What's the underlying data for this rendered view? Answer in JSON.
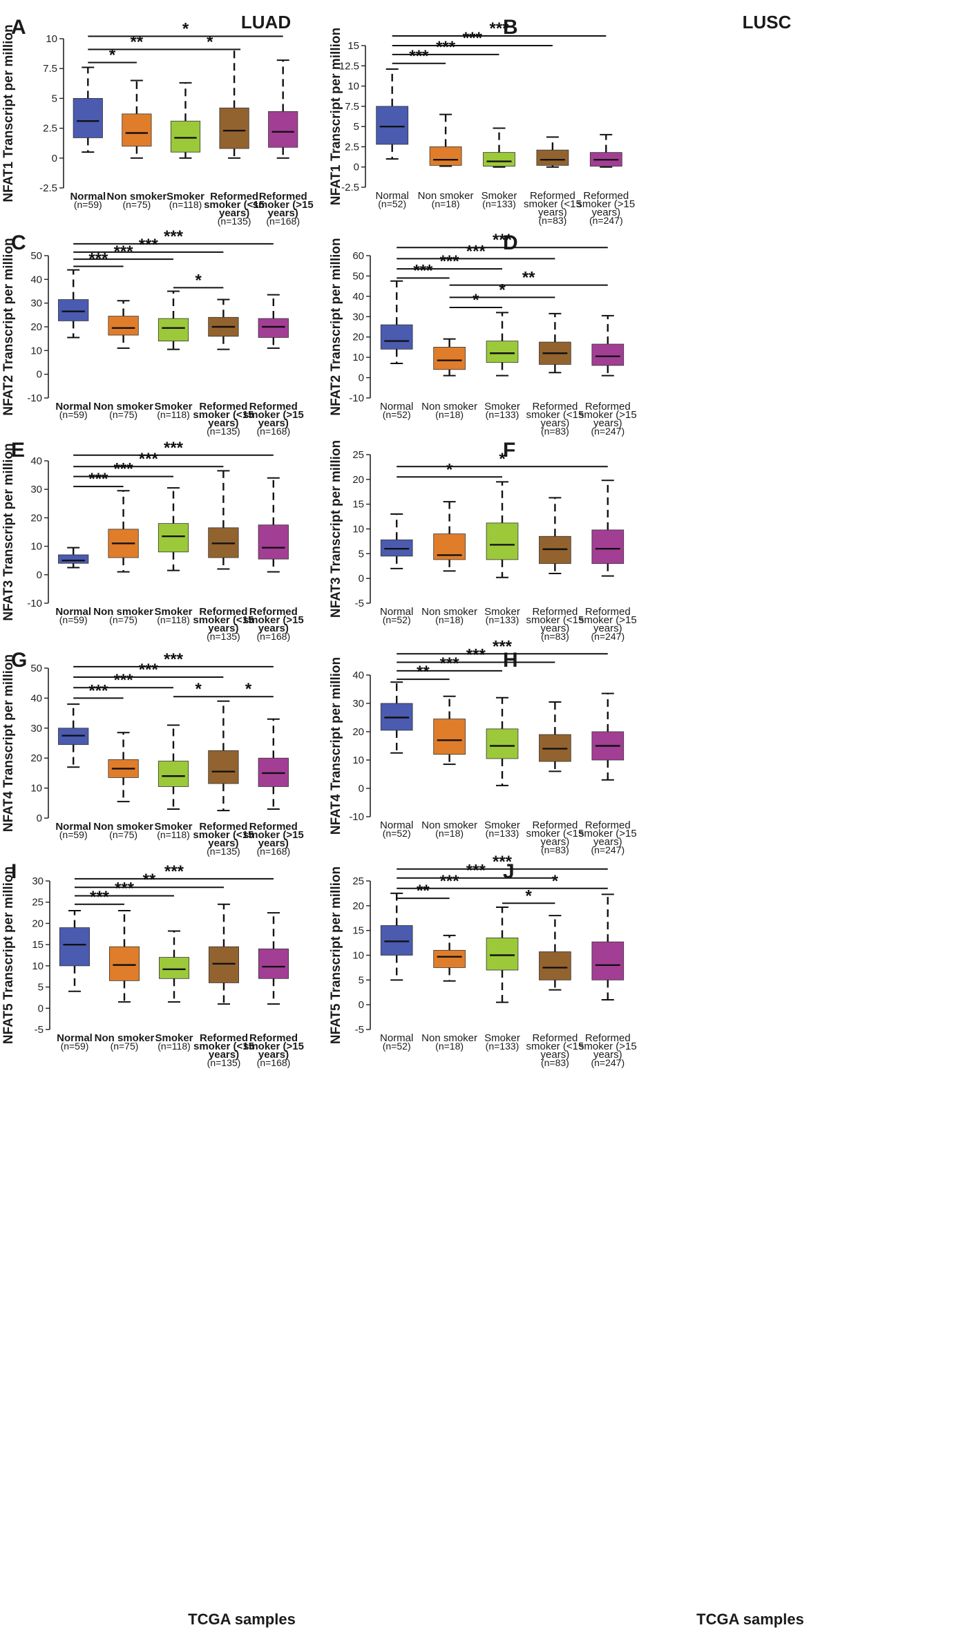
{
  "figure": {
    "column_titles": [
      "LUAD",
      "LUSC"
    ],
    "footer_label": "TCGA samples",
    "category_colors": [
      "#4a5bb0",
      "#e07d2a",
      "#9cc93a",
      "#93632f",
      "#a33e95"
    ]
  },
  "chart_data": [
    {
      "panel": "A",
      "type": "box",
      "ylabel": "NFAT1 Transcript per million",
      "ylim": [
        -2.5,
        10
      ],
      "yticks": [
        "-2.5",
        "0",
        "2.5",
        "5",
        "7.5",
        "10"
      ],
      "categories": [
        {
          "name": "Normal",
          "n": "(n=59)"
        },
        {
          "name": "Non smoker",
          "n": "(n=75)"
        },
        {
          "name": "Smoker",
          "n": "(n=118)"
        },
        {
          "name": "Reformed smoker (<15 years)",
          "n": "(n=135)"
        },
        {
          "name": "Reformed smoker (>15 years)",
          "n": "(n=168)"
        }
      ],
      "boxes": [
        {
          "min": 0.5,
          "q1": 1.7,
          "median": 3.1,
          "q3": 5.0,
          "max": 7.6
        },
        {
          "min": 0.0,
          "q1": 1.0,
          "median": 2.1,
          "q3": 3.7,
          "max": 6.5
        },
        {
          "min": 0.0,
          "q1": 0.5,
          "median": 1.7,
          "q3": 3.1,
          "max": 6.3
        },
        {
          "min": 0.0,
          "q1": 0.8,
          "median": 2.3,
          "q3": 4.2,
          "max": 9.1
        },
        {
          "min": 0.0,
          "q1": 0.9,
          "median": 2.2,
          "q3": 3.9,
          "max": 8.2
        }
      ],
      "significance": [
        {
          "from": 0,
          "to": 1,
          "y": 8.0,
          "label": "*"
        },
        {
          "from": 0,
          "to": 2,
          "y": 9.1,
          "label": "**"
        },
        {
          "from": 2,
          "to": 3,
          "y": 9.1,
          "label": "*"
        },
        {
          "from": 0,
          "to": 4,
          "y": 10.2,
          "label": "*"
        }
      ]
    },
    {
      "panel": "B",
      "type": "box",
      "ylabel": "NFAT1 Transcript per million",
      "ylim": [
        -2.5,
        15
      ],
      "yticks": [
        "-2.5",
        "0",
        "2.5",
        "5",
        "7.5",
        "10",
        "12.5",
        "15"
      ],
      "categories": [
        {
          "name": "Normal",
          "n": "(n=52)"
        },
        {
          "name": "Non smoker",
          "n": "(n=18)"
        },
        {
          "name": "Smoker",
          "n": "(n=133)"
        },
        {
          "name": "Reformed smoker (<15 years)",
          "n": "(n=83)"
        },
        {
          "name": "Reformed smoker (>15 years)",
          "n": "(n=247)"
        }
      ],
      "boxes": [
        {
          "min": 1.0,
          "q1": 2.8,
          "median": 5.0,
          "q3": 7.5,
          "max": 12.1
        },
        {
          "min": 0.1,
          "q1": 0.2,
          "median": 0.9,
          "q3": 2.5,
          "max": 6.5
        },
        {
          "min": 0.0,
          "q1": 0.1,
          "median": 0.7,
          "q3": 1.8,
          "max": 4.8
        },
        {
          "min": 0.0,
          "q1": 0.2,
          "median": 0.9,
          "q3": 2.1,
          "max": 3.7
        },
        {
          "min": 0.0,
          "q1": 0.1,
          "median": 0.9,
          "q3": 1.8,
          "max": 4.0
        }
      ],
      "significance": [
        {
          "from": 0,
          "to": 1,
          "y": 12.8,
          "label": "***"
        },
        {
          "from": 0,
          "to": 2,
          "y": 13.9,
          "label": "***"
        },
        {
          "from": 0,
          "to": 3,
          "y": 15.0,
          "label": "***"
        },
        {
          "from": 0,
          "to": 4,
          "y": 16.2,
          "label": "***"
        }
      ]
    },
    {
      "panel": "C",
      "type": "box",
      "ylabel": "NFAT2 Transcript per million",
      "ylim": [
        -10,
        50
      ],
      "yticks": [
        "-10",
        "0",
        "10",
        "20",
        "30",
        "40",
        "50"
      ],
      "categories": [
        {
          "name": "Normal",
          "n": "(n=59)"
        },
        {
          "name": "Non smoker",
          "n": "(n=75)"
        },
        {
          "name": "Smoker",
          "n": "(n=118)"
        },
        {
          "name": "Reformed smoker (<15 years)",
          "n": "(n=135)"
        },
        {
          "name": "Reformed smoker (>15 years)",
          "n": "(n=168)"
        }
      ],
      "boxes": [
        {
          "min": 15.5,
          "q1": 22.5,
          "median": 26.5,
          "q3": 31.5,
          "max": 44.0
        },
        {
          "min": 11.0,
          "q1": 16.5,
          "median": 19.5,
          "q3": 24.5,
          "max": 31.0
        },
        {
          "min": 10.5,
          "q1": 14.0,
          "median": 19.5,
          "q3": 23.5,
          "max": 35.0
        },
        {
          "min": 10.5,
          "q1": 16.0,
          "median": 20.0,
          "q3": 24.0,
          "max": 31.5
        },
        {
          "min": 11.0,
          "q1": 15.5,
          "median": 20.0,
          "q3": 23.5,
          "max": 33.5
        }
      ],
      "significance": [
        {
          "from": 0,
          "to": 1,
          "y": 45.5,
          "label": "***"
        },
        {
          "from": 0,
          "to": 2,
          "y": 48.5,
          "label": "***"
        },
        {
          "from": 2,
          "to": 3,
          "y": 36.5,
          "label": "*"
        },
        {
          "from": 0,
          "to": 3,
          "y": 51.5,
          "label": "***"
        },
        {
          "from": 0,
          "to": 4,
          "y": 55.0,
          "label": "***"
        }
      ]
    },
    {
      "panel": "D",
      "type": "box",
      "ylabel": "NFAT2 Transcript per million",
      "ylim": [
        -10,
        60
      ],
      "yticks": [
        "-10",
        "0",
        "10",
        "20",
        "30",
        "40",
        "50",
        "60"
      ],
      "categories": [
        {
          "name": "Normal",
          "n": "(n=52)"
        },
        {
          "name": "Non smoker",
          "n": "(n=18)"
        },
        {
          "name": "Smoker",
          "n": "(n=133)"
        },
        {
          "name": "Reformed smoker (<15 years)",
          "n": "(n=83)"
        },
        {
          "name": "Reformed smoker (>15 years)",
          "n": "(n=247)"
        }
      ],
      "boxes": [
        {
          "min": 7.0,
          "q1": 14.0,
          "median": 18.0,
          "q3": 26.0,
          "max": 47.5
        },
        {
          "min": 1.0,
          "q1": 4.0,
          "median": 8.5,
          "q3": 15.0,
          "max": 19.0
        },
        {
          "min": 1.0,
          "q1": 7.5,
          "median": 12.0,
          "q3": 18.0,
          "max": 32.0
        },
        {
          "min": 2.5,
          "q1": 6.5,
          "median": 12.0,
          "q3": 17.5,
          "max": 31.5
        },
        {
          "min": 1.0,
          "q1": 6.0,
          "median": 10.5,
          "q3": 16.5,
          "max": 30.5
        }
      ],
      "significance": [
        {
          "from": 1,
          "to": 2,
          "y": 34.5,
          "label": "*"
        },
        {
          "from": 1,
          "to": 3,
          "y": 39.5,
          "label": "*"
        },
        {
          "from": 1,
          "to": 4,
          "y": 45.5,
          "label": "**"
        },
        {
          "from": 0,
          "to": 1,
          "y": 49.0,
          "label": "***"
        },
        {
          "from": 0,
          "to": 2,
          "y": 53.5,
          "label": "***"
        },
        {
          "from": 0,
          "to": 3,
          "y": 58.5,
          "label": "***"
        },
        {
          "from": 0,
          "to": 4,
          "y": 64.0,
          "label": "***"
        }
      ]
    },
    {
      "panel": "E",
      "type": "box",
      "ylabel": "NFAT3 Transcript per million",
      "ylim": [
        -10,
        40
      ],
      "yticks": [
        "-10",
        "0",
        "10",
        "20",
        "30",
        "40"
      ],
      "categories": [
        {
          "name": "Normal",
          "n": "(n=59)"
        },
        {
          "name": "Non smoker",
          "n": "(n=75)"
        },
        {
          "name": "Smoker",
          "n": "(n=118)"
        },
        {
          "name": "Reformed smoker (<15 years)",
          "n": "(n=135)"
        },
        {
          "name": "Reformed smoker (>15 years)",
          "n": "(n=168)"
        }
      ],
      "boxes": [
        {
          "min": 2.5,
          "q1": 4.0,
          "median": 5.0,
          "q3": 7.0,
          "max": 9.5
        },
        {
          "min": 1.0,
          "q1": 6.0,
          "median": 11.0,
          "q3": 16.0,
          "max": 29.5
        },
        {
          "min": 1.5,
          "q1": 8.0,
          "median": 13.5,
          "q3": 18.0,
          "max": 30.5
        },
        {
          "min": 2.0,
          "q1": 6.0,
          "median": 11.0,
          "q3": 16.5,
          "max": 36.5
        },
        {
          "min": 1.0,
          "q1": 5.5,
          "median": 9.5,
          "q3": 17.5,
          "max": 34.0
        }
      ],
      "significance": [
        {
          "from": 0,
          "to": 1,
          "y": 31.0,
          "label": "***"
        },
        {
          "from": 0,
          "to": 2,
          "y": 34.5,
          "label": "***"
        },
        {
          "from": 0,
          "to": 3,
          "y": 38.0,
          "label": "***"
        },
        {
          "from": 0,
          "to": 4,
          "y": 42.0,
          "label": "***"
        }
      ]
    },
    {
      "panel": "F",
      "type": "box",
      "ylabel": "NFAT3 Transcript per million",
      "ylim": [
        -5,
        25
      ],
      "yticks": [
        "-5",
        "0",
        "5",
        "10",
        "15",
        "20",
        "25"
      ],
      "categories": [
        {
          "name": "Normal",
          "n": "(n=52)"
        },
        {
          "name": "Non smoker",
          "n": "(n=18)"
        },
        {
          "name": "Smoker",
          "n": "(n=133)"
        },
        {
          "name": "Reformed smoker (<15 years)",
          "n": "(n=83)"
        },
        {
          "name": "Reformed smoker (>15 years)",
          "n": "(n=247)"
        }
      ],
      "boxes": [
        {
          "min": 2.0,
          "q1": 4.5,
          "median": 6.0,
          "q3": 7.8,
          "max": 13.0
        },
        {
          "min": 1.5,
          "q1": 3.8,
          "median": 4.7,
          "q3": 9.0,
          "max": 15.5
        },
        {
          "min": 0.2,
          "q1": 3.8,
          "median": 6.8,
          "q3": 11.2,
          "max": 19.5
        },
        {
          "min": 1.0,
          "q1": 3.0,
          "median": 5.9,
          "q3": 8.5,
          "max": 16.3
        },
        {
          "min": 0.5,
          "q1": 3.0,
          "median": 6.0,
          "q3": 9.8,
          "max": 19.8
        }
      ],
      "significance": [
        {
          "from": 0,
          "to": 2,
          "y": 20.5,
          "label": "*"
        },
        {
          "from": 0,
          "to": 4,
          "y": 22.6,
          "label": "*"
        }
      ]
    },
    {
      "panel": "G",
      "type": "box",
      "ylabel": "NFAT4 Transcript per million",
      "ylim": [
        0,
        50
      ],
      "yticks": [
        "0",
        "10",
        "20",
        "30",
        "40",
        "50"
      ],
      "categories": [
        {
          "name": "Normal",
          "n": "(n=59)"
        },
        {
          "name": "Non smoker",
          "n": "(n=75)"
        },
        {
          "name": "Smoker",
          "n": "(n=118)"
        },
        {
          "name": "Reformed smoker (<15 years)",
          "n": "(n=135)"
        },
        {
          "name": "Reformed smoker (>15 years)",
          "n": "(n=168)"
        }
      ],
      "boxes": [
        {
          "min": 17.0,
          "q1": 24.5,
          "median": 27.5,
          "q3": 30.0,
          "max": 38.0
        },
        {
          "min": 5.5,
          "q1": 13.5,
          "median": 16.5,
          "q3": 19.5,
          "max": 28.5
        },
        {
          "min": 3.0,
          "q1": 10.5,
          "median": 14.0,
          "q3": 19.0,
          "max": 31.0
        },
        {
          "min": 2.5,
          "q1": 11.5,
          "median": 15.5,
          "q3": 22.5,
          "max": 39.0
        },
        {
          "min": 3.0,
          "q1": 10.5,
          "median": 15.0,
          "q3": 20.0,
          "max": 33.0
        }
      ],
      "significance": [
        {
          "from": 0,
          "to": 1,
          "y": 40.0,
          "label": "***"
        },
        {
          "from": 0,
          "to": 2,
          "y": 43.5,
          "label": "***"
        },
        {
          "from": 2,
          "to": 3,
          "y": 40.5,
          "label": "*"
        },
        {
          "from": 3,
          "to": 4,
          "y": 40.5,
          "label": "*"
        },
        {
          "from": 0,
          "to": 3,
          "y": 47.0,
          "label": "***"
        },
        {
          "from": 0,
          "to": 4,
          "y": 50.5,
          "label": "***"
        }
      ]
    },
    {
      "panel": "H",
      "type": "box",
      "ylabel": "NFAT4 Transcript per million",
      "ylim": [
        -10,
        40
      ],
      "yticks": [
        "-10",
        "0",
        "10",
        "20",
        "30",
        "40"
      ],
      "categories": [
        {
          "name": "Normal",
          "n": "(n=52)"
        },
        {
          "name": "Non smoker",
          "n": "(n=18)"
        },
        {
          "name": "Smoker",
          "n": "(n=133)"
        },
        {
          "name": "Reformed smoker (<15 years)",
          "n": "(n=83)"
        },
        {
          "name": "Reformed smoker (>15 years)",
          "n": "(n=247)"
        }
      ],
      "boxes": [
        {
          "min": 12.5,
          "q1": 20.5,
          "median": 25.0,
          "q3": 30.0,
          "max": 37.5
        },
        {
          "min": 8.5,
          "q1": 12.0,
          "median": 17.0,
          "q3": 24.5,
          "max": 32.5
        },
        {
          "min": 1.0,
          "q1": 10.5,
          "median": 15.0,
          "q3": 21.0,
          "max": 32.0
        },
        {
          "min": 6.0,
          "q1": 9.5,
          "median": 14.0,
          "q3": 19.0,
          "max": 30.5
        },
        {
          "min": 3.0,
          "q1": 10.0,
          "median": 15.0,
          "q3": 20.0,
          "max": 33.5
        }
      ],
      "significance": [
        {
          "from": 0,
          "to": 1,
          "y": 38.5,
          "label": "**"
        },
        {
          "from": 0,
          "to": 2,
          "y": 41.5,
          "label": "***"
        },
        {
          "from": 0,
          "to": 3,
          "y": 44.5,
          "label": "***"
        },
        {
          "from": 0,
          "to": 4,
          "y": 47.5,
          "label": "***"
        }
      ]
    },
    {
      "panel": "I",
      "type": "box",
      "ylabel": "NFAT5 Transcript per million",
      "ylim": [
        -5,
        30
      ],
      "yticks": [
        "-5",
        "0",
        "5",
        "10",
        "15",
        "20",
        "25",
        "30"
      ],
      "categories": [
        {
          "name": "Normal",
          "n": "(n=59)"
        },
        {
          "name": "Non smoker",
          "n": "(n=75)"
        },
        {
          "name": "Smoker",
          "n": "(n=118)"
        },
        {
          "name": "Reformed smoker (<15 years)",
          "n": "(n=135)"
        },
        {
          "name": "Reformed smoker (>15 years)",
          "n": "(n=168)"
        }
      ],
      "boxes": [
        {
          "min": 4.0,
          "q1": 10.0,
          "median": 15.0,
          "q3": 19.0,
          "max": 23.0
        },
        {
          "min": 1.5,
          "q1": 6.5,
          "median": 10.2,
          "q3": 14.5,
          "max": 23.0
        },
        {
          "min": 1.5,
          "q1": 7.0,
          "median": 9.2,
          "q3": 12.0,
          "max": 18.2
        },
        {
          "min": 1.0,
          "q1": 6.0,
          "median": 10.5,
          "q3": 14.5,
          "max": 24.5
        },
        {
          "min": 1.0,
          "q1": 7.0,
          "median": 9.8,
          "q3": 14.0,
          "max": 22.5
        }
      ],
      "significance": [
        {
          "from": 0,
          "to": 1,
          "y": 24.5,
          "label": "***"
        },
        {
          "from": 0,
          "to": 2,
          "y": 26.5,
          "label": "***"
        },
        {
          "from": 0,
          "to": 3,
          "y": 28.5,
          "label": "**"
        },
        {
          "from": 0,
          "to": 4,
          "y": 30.5,
          "label": "***"
        }
      ]
    },
    {
      "panel": "J",
      "type": "box",
      "ylabel": "NFAT5 Transcript per million",
      "ylim": [
        -5,
        25
      ],
      "yticks": [
        "-5",
        "0",
        "5",
        "10",
        "15",
        "20",
        "25"
      ],
      "categories": [
        {
          "name": "Normal",
          "n": "(n=52)"
        },
        {
          "name": "Non smoker",
          "n": "(n=18)"
        },
        {
          "name": "Smoker",
          "n": "(n=133)"
        },
        {
          "name": "Reformed smoker (<15 years)",
          "n": "(n=83)"
        },
        {
          "name": "Reformed smoker (>15 years)",
          "n": "(n=247)"
        }
      ],
      "boxes": [
        {
          "min": 5.0,
          "q1": 10.0,
          "median": 12.8,
          "q3": 16.0,
          "max": 22.5
        },
        {
          "min": 4.8,
          "q1": 7.5,
          "median": 9.7,
          "q3": 11.0,
          "max": 14.0
        },
        {
          "min": 0.5,
          "q1": 7.0,
          "median": 10.0,
          "q3": 13.5,
          "max": 19.7
        },
        {
          "min": 3.0,
          "q1": 5.0,
          "median": 7.5,
          "q3": 10.7,
          "max": 18.0
        },
        {
          "min": 1.0,
          "q1": 5.0,
          "median": 8.0,
          "q3": 12.7,
          "max": 22.3
        }
      ],
      "significance": [
        {
          "from": 0,
          "to": 1,
          "y": 21.5,
          "label": "**"
        },
        {
          "from": 2,
          "to": 3,
          "y": 20.5,
          "label": "*"
        },
        {
          "from": 0,
          "to": 2,
          "y": 23.5,
          "label": "***"
        },
        {
          "from": 2,
          "to": 4,
          "y": 23.5,
          "label": "*"
        },
        {
          "from": 0,
          "to": 3,
          "y": 25.6,
          "label": "***"
        },
        {
          "from": 0,
          "to": 4,
          "y": 27.4,
          "label": "***"
        }
      ]
    }
  ]
}
